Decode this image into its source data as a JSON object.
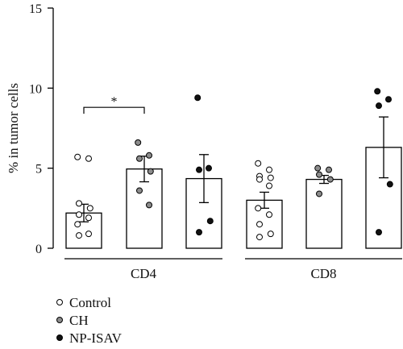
{
  "chart_data": {
    "type": "bar",
    "ylabel": "% in tumor cells",
    "ylim": [
      0,
      15
    ],
    "yticks": [
      0,
      5,
      10,
      15
    ],
    "groups": [
      "CD4",
      "CD8"
    ],
    "legend_placement": "bottom-left",
    "significance": [
      {
        "group": "CD4",
        "from": "Control",
        "to": "CH",
        "label": "*",
        "y": 8.8
      }
    ],
    "series": [
      {
        "name": "Control",
        "color": "#ffffff",
        "values": [
          2.2,
          3.0
        ],
        "error": [
          0.55,
          0.5
        ],
        "points": [
          [
            5.7,
            5.6,
            2.8,
            2.5,
            2.1,
            1.9,
            1.5,
            0.9,
            0.8
          ],
          [
            5.3,
            4.9,
            4.5,
            4.4,
            4.3,
            3.9,
            2.5,
            2.1,
            1.5,
            0.9,
            0.7
          ]
        ]
      },
      {
        "name": "CH",
        "color": "#8c8c8c",
        "values": [
          4.95,
          4.3
        ],
        "error": [
          0.8,
          0.25
        ],
        "points": [
          [
            6.6,
            5.8,
            5.6,
            4.8,
            3.6,
            2.7
          ],
          [
            5.0,
            4.9,
            4.6,
            4.3,
            3.4
          ]
        ]
      },
      {
        "name": "NP-ISAV",
        "color": "#111111",
        "values": [
          4.35,
          6.3
        ],
        "error": [
          1.5,
          1.9
        ],
        "points": [
          [
            9.4,
            5.0,
            4.9,
            1.7,
            1.0
          ],
          [
            9.8,
            9.3,
            8.9,
            4.0,
            1.0
          ]
        ]
      }
    ]
  }
}
